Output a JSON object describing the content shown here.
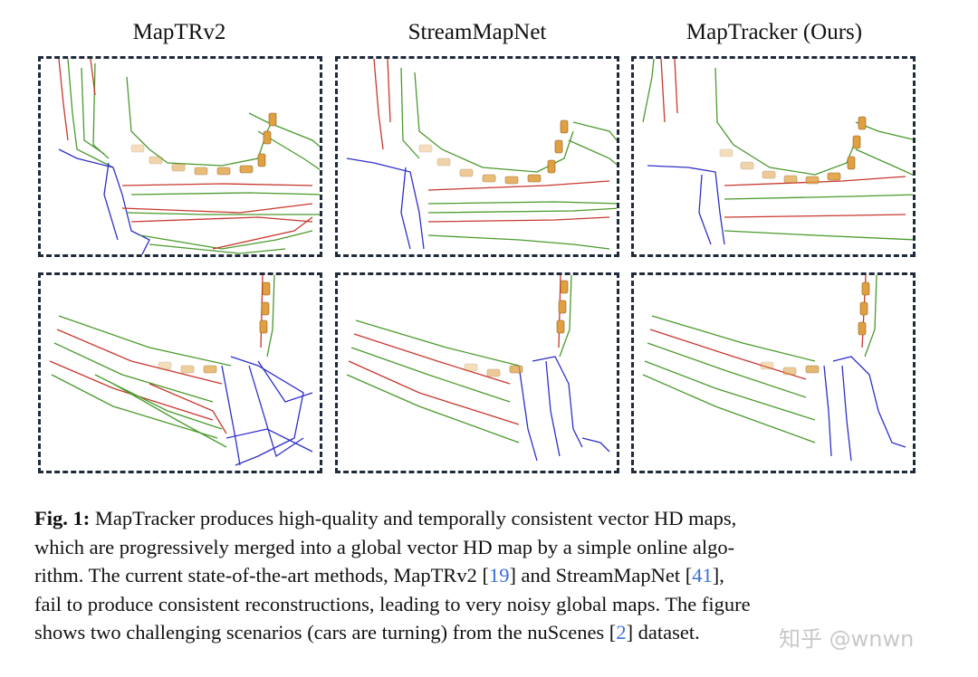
{
  "columns": [
    {
      "title": "MapTRv2"
    },
    {
      "title": "StreamMapNet"
    },
    {
      "title": "MapTracker (Ours)"
    }
  ],
  "colors": {
    "divider": "#c8372e",
    "boundary": "#4a9a2c",
    "crossing": "#2f2fc8",
    "car": "#e0a040",
    "border": "#1f2a3a",
    "citation": "#3a6fd8"
  },
  "caption": {
    "label": "Fig. 1:",
    "line1": "MapTracker produces high-quality and temporally consistent vector HD maps,",
    "line2": "which are progressively merged into a global vector HD map by a simple online algo-",
    "line3a": "rithm. The current state-of-the-art methods, MapTRv2 [",
    "cite1": "19",
    "line3b": "] and StreamMapNet [",
    "cite2": "41",
    "line3c": "],",
    "line4": "fail to produce consistent reconstructions, leading to very noisy global maps. The figure",
    "line5a": "shows two challenging scenarios (cars are turning) from the nuScenes [",
    "cite3": "2",
    "line5b": "] dataset."
  },
  "watermark": "知乎 @wnwn"
}
